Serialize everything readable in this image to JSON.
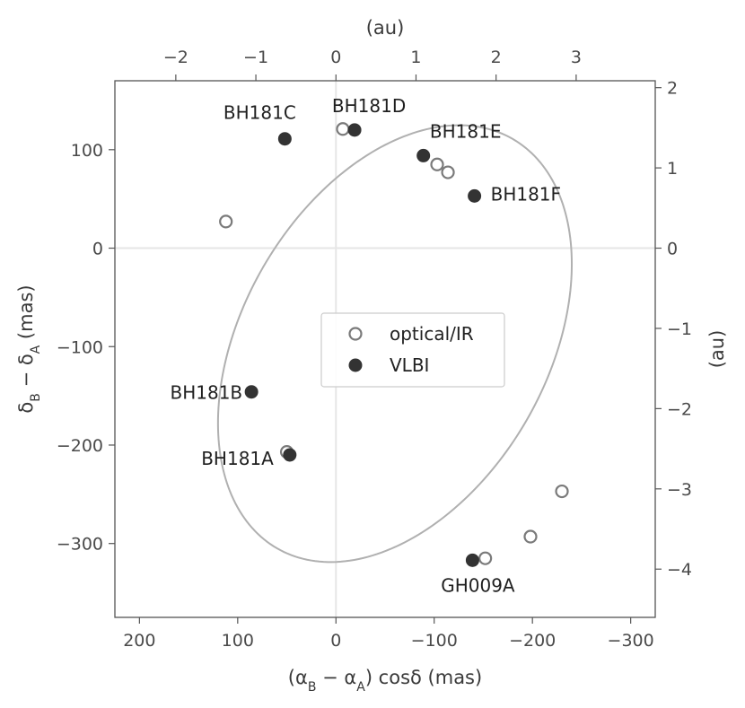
{
  "chart_data": {
    "type": "scatter",
    "x_axis": {
      "label": "(α_B − α_A) cosδ (mas)",
      "range": [
        225,
        -325
      ],
      "inverted": true,
      "ticks": [
        200,
        100,
        0,
        -100,
        -200,
        -300
      ],
      "tick_labels": [
        "200",
        "100",
        "0",
        "−100",
        "−200",
        "−300"
      ]
    },
    "y_axis": {
      "label": "δ_B − δ_A (mas)",
      "range": [
        -375,
        170
      ],
      "ticks": [
        100,
        0,
        -100,
        -200,
        -300
      ],
      "tick_labels": [
        "100",
        "0",
        "−100",
        "−200",
        "−300"
      ]
    },
    "top_axis": {
      "label": "(au)",
      "ticks": [
        -2,
        -1,
        0,
        1,
        2,
        3
      ],
      "tick_labels": [
        "−2",
        "−1",
        "0",
        "1",
        "2",
        "3"
      ]
    },
    "right_axis": {
      "label": "(au)",
      "ticks": [
        2,
        1,
        0,
        -1,
        -2,
        -3,
        -4
      ],
      "tick_labels": [
        "2",
        "1",
        "0",
        "−1",
        "−2",
        "−3",
        "−4"
      ]
    },
    "zero_lines": true,
    "orbit_ellipse": {
      "center": [
        -60,
        -97
      ],
      "semi_axes": [
        155,
        240
      ],
      "rotation_deg": 30
    },
    "series": [
      {
        "name": "optical/IR",
        "marker": "open-circle",
        "color": "#7a7a7a",
        "points": [
          {
            "x": -7,
            "y": 121
          },
          {
            "x": -103,
            "y": 85
          },
          {
            "x": -114,
            "y": 77
          },
          {
            "x": 112,
            "y": 27
          },
          {
            "x": 50,
            "y": -207
          },
          {
            "x": -230,
            "y": -247
          },
          {
            "x": -198,
            "y": -293
          },
          {
            "x": -152,
            "y": -315
          }
        ]
      },
      {
        "name": "VLBI",
        "marker": "filled-circle",
        "color": "#333333",
        "points": [
          {
            "x": -19,
            "y": 120,
            "label": "BH181D"
          },
          {
            "x": 52,
            "y": 111,
            "label": "BH181C"
          },
          {
            "x": -89,
            "y": 94,
            "label": "BH181E"
          },
          {
            "x": -141,
            "y": 53,
            "label": "BH181F"
          },
          {
            "x": 86,
            "y": -146,
            "label": "BH181B"
          },
          {
            "x": 47,
            "y": -210,
            "label": "BH181A"
          },
          {
            "x": -139,
            "y": -317,
            "label": "GH009A"
          }
        ]
      }
    ],
    "legend": {
      "position": "center"
    },
    "colors": {
      "axis": "#555555",
      "zero_line": "#e6e6e6",
      "ellipse": "#b0b0b0",
      "open_marker": "#7a7a7a",
      "filled_marker": "#333333"
    }
  }
}
